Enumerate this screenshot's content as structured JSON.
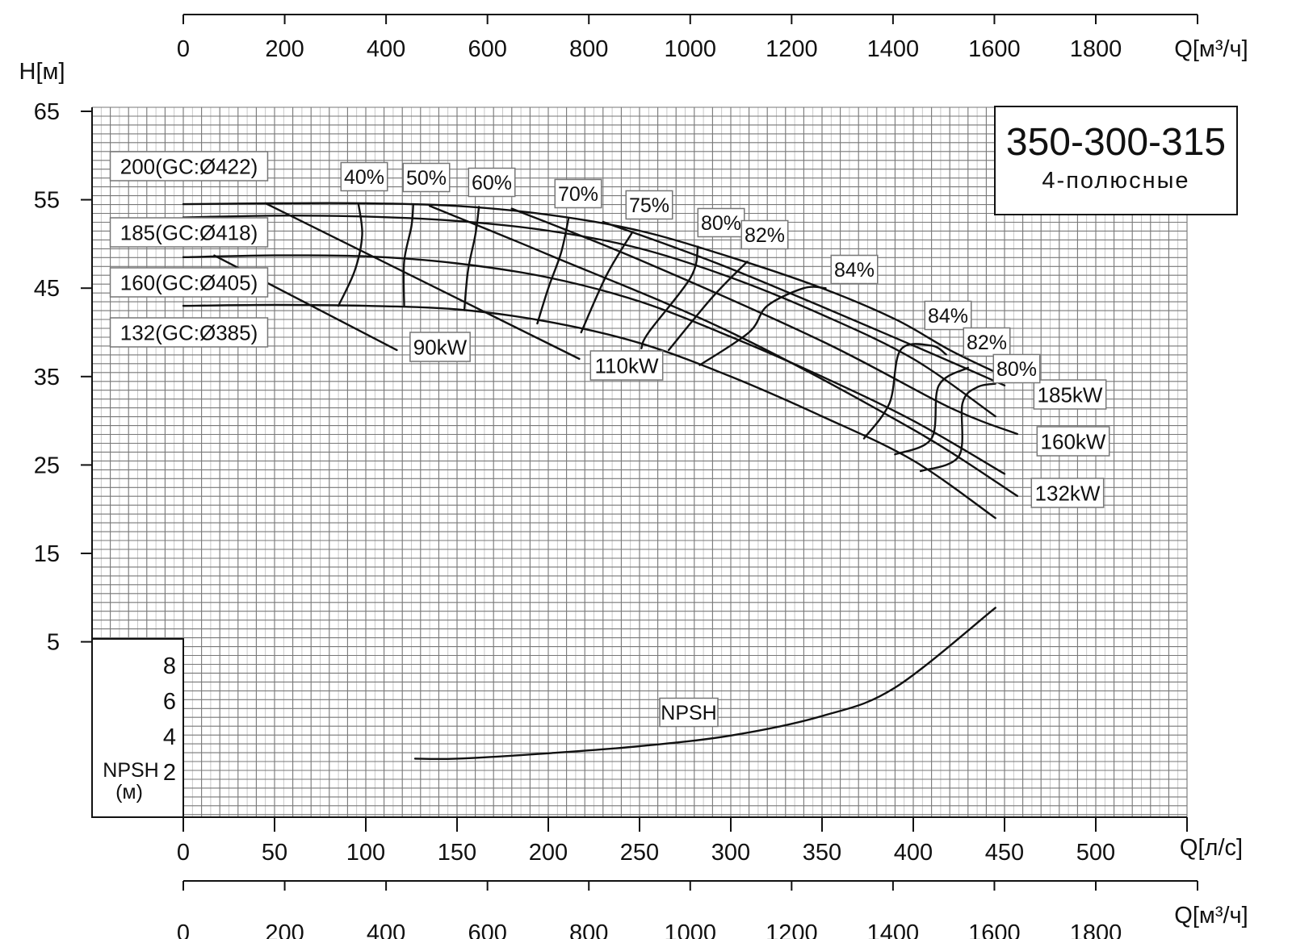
{
  "chart_data": {
    "type": "line",
    "title": "350-300-315",
    "subtitle": "4-полюсные",
    "y_axis": {
      "label": "H[м]",
      "ticks": [
        65,
        55,
        45,
        35,
        25,
        15,
        5
      ],
      "range": [
        -17,
        65
      ]
    },
    "x_axis_bottom": {
      "label": "Q[л/с]",
      "ticks": [
        0,
        50,
        100,
        150,
        200,
        250,
        300,
        350,
        400,
        450,
        500
      ],
      "range": [
        -50,
        550
      ]
    },
    "x_axis_m3h": {
      "label": "Q[м³/ч]",
      "ticks": [
        0,
        200,
        400,
        600,
        800,
        1000,
        1200,
        1400,
        1600,
        1800
      ]
    },
    "npsh_axis": {
      "label": "NPSH",
      "unit": "(м)",
      "ticks": [
        8,
        6,
        4,
        2
      ]
    },
    "grid": true,
    "impeller_curves": [
      {
        "name": "200(GC:Ø422)",
        "points": [
          [
            0,
            54.5
          ],
          [
            50,
            54.6
          ],
          [
            100,
            54.6
          ],
          [
            150,
            54.3
          ],
          [
            200,
            53.3
          ],
          [
            250,
            51.5
          ],
          [
            300,
            48.5
          ],
          [
            350,
            45
          ],
          [
            390,
            41.5
          ],
          [
            420,
            38
          ],
          [
            445,
            35.5
          ]
        ]
      },
      {
        "name": "185(GC:Ø418)",
        "points": [
          [
            0,
            53
          ],
          [
            50,
            53.2
          ],
          [
            100,
            53.1
          ],
          [
            150,
            52.6
          ],
          [
            200,
            51.5
          ],
          [
            250,
            49.5
          ],
          [
            300,
            46.2
          ],
          [
            350,
            42
          ],
          [
            400,
            37
          ],
          [
            445,
            30.5
          ]
        ]
      },
      {
        "name": "160(GC:Ø405)",
        "points": [
          [
            0,
            48.5
          ],
          [
            50,
            48.7
          ],
          [
            100,
            48.6
          ],
          [
            150,
            47.8
          ],
          [
            200,
            46.2
          ],
          [
            250,
            43.5
          ],
          [
            300,
            39.5
          ],
          [
            350,
            35
          ],
          [
            400,
            30
          ],
          [
            450,
            24
          ]
        ]
      },
      {
        "name": "132(GC:Ø385)",
        "points": [
          [
            0,
            43
          ],
          [
            50,
            43.1
          ],
          [
            100,
            43
          ],
          [
            150,
            42.6
          ],
          [
            200,
            41.2
          ],
          [
            250,
            38.8
          ],
          [
            300,
            35
          ],
          [
            350,
            30.5
          ],
          [
            400,
            25.5
          ],
          [
            445,
            19
          ]
        ]
      }
    ],
    "power_curves": [
      {
        "name": "90kW",
        "points": [
          [
            17,
            48.7
          ],
          [
            117,
            38
          ]
        ]
      },
      {
        "name": "110kW",
        "points": [
          [
            45,
            54.6
          ],
          [
            217,
            37
          ]
        ]
      },
      {
        "name": "132kW",
        "points": [
          [
            135,
            54.3
          ],
          [
            200,
            48.8
          ],
          [
            300,
            40
          ],
          [
            400,
            29
          ],
          [
            457,
            21.5
          ]
        ]
      },
      {
        "name": "160kW",
        "points": [
          [
            180,
            54
          ],
          [
            250,
            48.2
          ],
          [
            350,
            39
          ],
          [
            420,
            31.5
          ],
          [
            457,
            28.5
          ]
        ]
      },
      {
        "name": "185kW",
        "points": [
          [
            230,
            52.5
          ],
          [
            300,
            47.2
          ],
          [
            400,
            38.5
          ],
          [
            450,
            34
          ]
        ]
      }
    ],
    "efficiency_lines": [
      {
        "name": "40%",
        "points": [
          [
            96,
            54.5
          ],
          [
            98,
            51
          ],
          [
            94,
            47
          ],
          [
            85,
            43
          ]
        ]
      },
      {
        "name": "50%",
        "points": [
          [
            126,
            54.5
          ],
          [
            125,
            52
          ],
          [
            121,
            48
          ],
          [
            121,
            43
          ]
        ]
      },
      {
        "name": "60%",
        "points": [
          [
            162,
            54.2
          ],
          [
            160,
            51
          ],
          [
            156,
            47
          ],
          [
            154,
            42.5
          ]
        ]
      },
      {
        "name": "70%",
        "points": [
          [
            211,
            52.8
          ],
          [
            207,
            49
          ],
          [
            200,
            45
          ],
          [
            194,
            41
          ]
        ]
      },
      {
        "name": "75%",
        "points": [
          [
            246,
            51.3
          ],
          [
            232,
            46.5
          ],
          [
            218,
            40
          ]
        ]
      },
      {
        "name": "80%",
        "points": [
          [
            282,
            49.7
          ],
          [
            278,
            46.2
          ],
          [
            255,
            40
          ],
          [
            251,
            38.2
          ]
        ]
      },
      {
        "name": "82%",
        "points": [
          [
            309,
            48
          ],
          [
            290,
            44
          ],
          [
            266,
            38
          ]
        ]
      },
      {
        "name": "84%",
        "points": [
          [
            283,
            36.3
          ],
          [
            310,
            40
          ],
          [
            320,
            43
          ],
          [
            340,
            45
          ],
          [
            352,
            45
          ]
        ]
      },
      {
        "name": "84%",
        "points": [
          [
            373,
            28
          ],
          [
            387,
            32
          ],
          [
            393,
            38
          ],
          [
            410,
            38.5
          ],
          [
            418,
            37.5
          ]
        ]
      },
      {
        "name": "82%",
        "points": [
          [
            390,
            26.2
          ],
          [
            410,
            28
          ],
          [
            414,
            34
          ],
          [
            430,
            36
          ]
        ]
      },
      {
        "name": "80%",
        "points": [
          [
            404,
            24.3
          ],
          [
            425,
            26
          ],
          [
            427,
            32
          ],
          [
            435,
            33.8
          ],
          [
            445,
            34.2
          ]
        ]
      }
    ],
    "npsh_curve": {
      "name": "NPSH",
      "points": [
        [
          127,
          3.3
        ],
        [
          150,
          3.3
        ],
        [
          200,
          3.6
        ],
        [
          250,
          4.0
        ],
        [
          300,
          4.6
        ],
        [
          350,
          5.7
        ],
        [
          390,
          7.3
        ],
        [
          445,
          11.8
        ]
      ]
    }
  }
}
